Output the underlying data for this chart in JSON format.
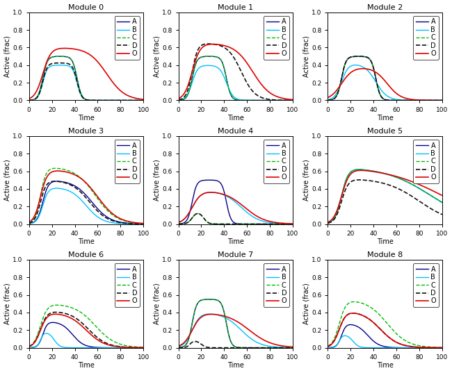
{
  "title_fontsize": 8,
  "axis_label_fontsize": 7,
  "tick_fontsize": 6.5,
  "legend_fontsize": 7,
  "line_colors": {
    "A": "#00008B",
    "B": "#00BFFF",
    "C": "#00BB00",
    "D": "#111111",
    "O": "#DD0000"
  },
  "line_styles": {
    "A": "-",
    "B": "-",
    "C": "--",
    "D": "--",
    "O": "-"
  },
  "line_widths": {
    "A": 1.0,
    "B": 1.0,
    "C": 1.0,
    "D": 1.2,
    "O": 1.2
  },
  "modules": [
    0,
    1,
    2,
    3,
    4,
    5,
    6,
    7,
    8
  ],
  "xlabel": "Time",
  "ylabel": "Active (frac)",
  "xlim": [
    0,
    100
  ],
  "ylim": [
    0,
    1
  ]
}
